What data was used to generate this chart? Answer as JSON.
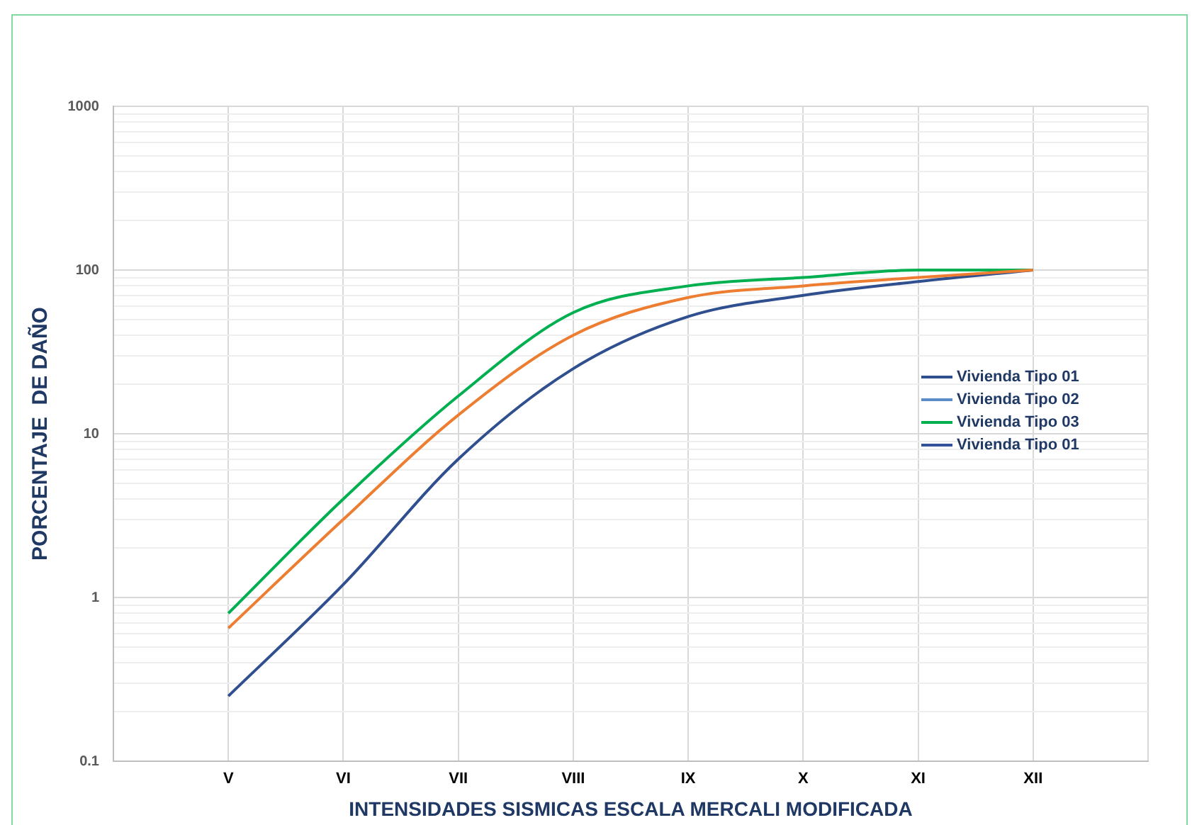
{
  "chart_data": {
    "type": "line",
    "xlabel": "INTENSIDADES SISMICAS ESCALA MERCALI MODIFICADA",
    "ylabel": "PORCENTAJE  DE DAÑO",
    "categories": [
      null,
      "V",
      "VI",
      "VII",
      "VIII",
      "IX",
      "X",
      "XI",
      "XII",
      null
    ],
    "series": [
      {
        "name": "Vivienda Tipo 01",
        "color": "#2f4f8f",
        "values": [
          null,
          0.25,
          1.2,
          7,
          25,
          52,
          70,
          85,
          100,
          null
        ]
      },
      {
        "name": "Vivienda Tipo 02",
        "color": "#5b8cc8",
        "values": [
          null,
          null,
          null,
          null,
          null,
          null,
          null,
          null,
          null,
          null
        ]
      },
      {
        "name": "Vivienda Tipo 03",
        "color": "#00b050",
        "values": [
          null,
          0.8,
          4,
          17,
          55,
          80,
          90,
          100,
          100,
          null
        ]
      },
      {
        "name": "Vivienda Tipo 01",
        "color": "#34519a",
        "values": [
          null,
          null,
          null,
          null,
          null,
          null,
          null,
          null,
          null,
          null
        ]
      },
      {
        "color": "#ed7d31",
        "values": [
          null,
          0.65,
          3,
          13,
          40,
          68,
          80,
          90,
          100,
          null
        ]
      }
    ],
    "log": "y",
    "ylim": [
      0.1,
      1000
    ],
    "yticks": [
      0.1,
      {
        "value": 0.2,
        "label": null
      },
      {
        "value": 0.3,
        "label": null
      },
      {
        "value": 0.4,
        "label": null
      },
      {
        "value": 0.5,
        "label": null
      },
      {
        "value": 0.6,
        "label": null
      },
      {
        "value": 0.7,
        "label": null
      },
      {
        "value": 0.8,
        "label": null
      },
      {
        "value": 0.9,
        "label": null
      },
      1,
      {
        "value": 2,
        "label": null
      },
      {
        "value": 3,
        "label": null
      },
      {
        "value": 4,
        "label": null
      },
      {
        "value": 5,
        "label": null
      },
      {
        "value": 6,
        "label": null
      },
      {
        "value": 7,
        "label": null
      },
      {
        "value": 8,
        "label": null
      },
      {
        "value": 9,
        "label": null
      },
      10,
      {
        "value": 20,
        "label": null
      },
      {
        "value": 30,
        "label": null
      },
      {
        "value": 40,
        "label": null
      },
      {
        "value": 50,
        "label": null
      },
      {
        "value": 60,
        "label": null
      },
      {
        "value": 70,
        "label": null
      },
      {
        "value": 80,
        "label": null
      },
      {
        "value": 90,
        "label": null
      },
      100,
      {
        "value": 200,
        "label": null
      },
      {
        "value": 300,
        "label": null
      },
      {
        "value": 400,
        "label": null
      },
      {
        "value": 500,
        "label": null
      },
      {
        "value": 600,
        "label": null
      },
      {
        "value": 700,
        "label": null
      },
      {
        "value": 800,
        "label": null
      },
      {
        "value": 900,
        "label": null
      },
      1000
    ],
    "grid": true,
    "legend": "right",
    "marker": "none",
    "line_style": "solid"
  }
}
